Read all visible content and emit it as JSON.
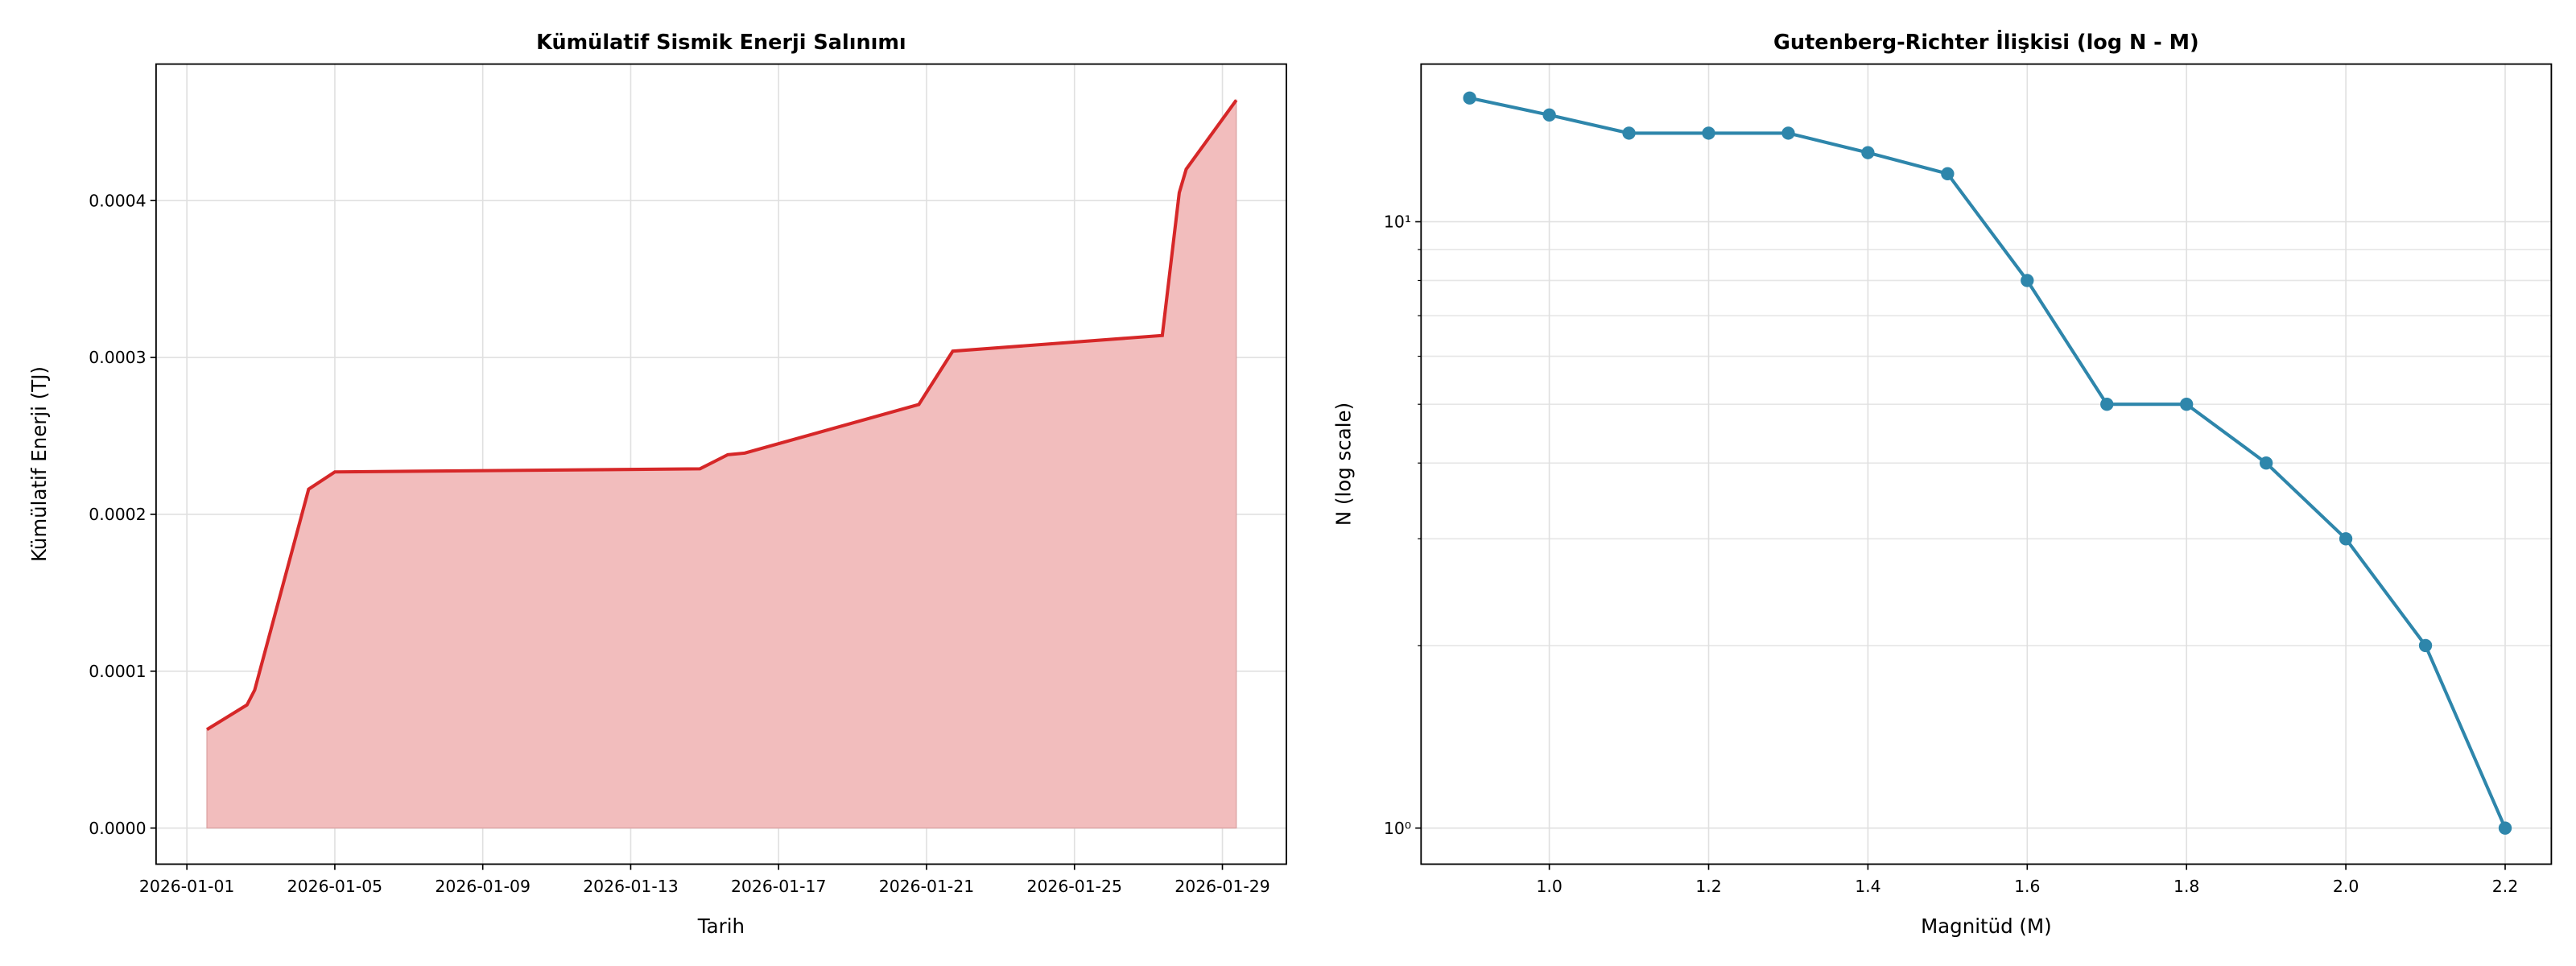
{
  "chart_data": [
    {
      "type": "area",
      "title": "Kümülatif Sismik Enerji Salınımı",
      "x_label": "Tarih",
      "y_label": "Kümülatif Enerji (TJ)",
      "x": [
        "2026-01-01T13:00",
        "2026-01-02T15:00",
        "2026-01-02T20:00",
        "2026-01-04T07:00",
        "2026-01-05T00:00",
        "2026-01-14T21:00",
        "2026-01-15T15:00",
        "2026-01-16T02:00",
        "2026-01-20T19:00",
        "2026-01-21T17:00",
        "2026-01-27T09:00",
        "2026-01-27T20:00",
        "2026-01-28T00:30",
        "2026-01-29T09:00"
      ],
      "values": [
        6.28e-05,
        7.85e-05,
        8.8e-05,
        0.000216,
        0.000227,
        0.000229,
        0.000238,
        0.000239,
        0.00027,
        0.000304,
        0.000314,
        0.000405,
        0.00042,
        0.000464
      ],
      "color": "#d62728",
      "fill_color": "#f2bdbd",
      "xlim": [
        "2025-12-31T04:00",
        "2026-01-30T17:30"
      ],
      "xticks": [
        "2026-01-01",
        "2026-01-05",
        "2026-01-09",
        "2026-01-13",
        "2026-01-17",
        "2026-01-21",
        "2026-01-25",
        "2026-01-29"
      ],
      "ylim": [
        -2.3e-05,
        0.000487
      ],
      "yticks": [
        {
          "value": 0,
          "label": "0.0000"
        },
        {
          "value": 0.0001,
          "label": "0.0001"
        },
        {
          "value": 0.0002,
          "label": "0.0002"
        },
        {
          "value": 0.0003,
          "label": "0.0003"
        },
        {
          "value": 0.0004,
          "label": "0.0004"
        }
      ],
      "grid": true
    },
    {
      "type": "line",
      "title": "Gutenberg-Richter İlişkisi (log N - M)",
      "x_label": "Magnitüd (M)",
      "y_label": "N (log scale)",
      "x": [
        0.9,
        1.0,
        1.1,
        1.2,
        1.3,
        1.4,
        1.5,
        1.6,
        1.7,
        1.8,
        1.9,
        2.0,
        2.1,
        2.2
      ],
      "values": [
        16,
        15,
        14,
        14,
        14,
        13,
        12,
        8,
        5,
        5,
        4,
        3,
        2,
        1
      ],
      "color": "#2e86ab",
      "y_scale": "log",
      "xlim": [
        0.839,
        2.258
      ],
      "xticks": [
        {
          "value": 1,
          "label": "1.0"
        },
        {
          "value": 1.2,
          "label": "1.2"
        },
        {
          "value": 1.4,
          "label": "1.4"
        },
        {
          "value": 1.6,
          "label": "1.6"
        },
        {
          "value": 1.8,
          "label": "1.8"
        },
        {
          "value": 2,
          "label": "2.0"
        },
        {
          "value": 2.2,
          "label": "2.2"
        }
      ],
      "ylim": [
        0.872,
        18.2
      ],
      "yticks": [
        {
          "value": 1,
          "label": "10⁰"
        },
        {
          "value": 10,
          "label": "10¹"
        }
      ],
      "yminorticks": [
        2,
        3,
        4,
        5,
        6,
        7,
        8,
        9
      ],
      "grid": true
    }
  ]
}
